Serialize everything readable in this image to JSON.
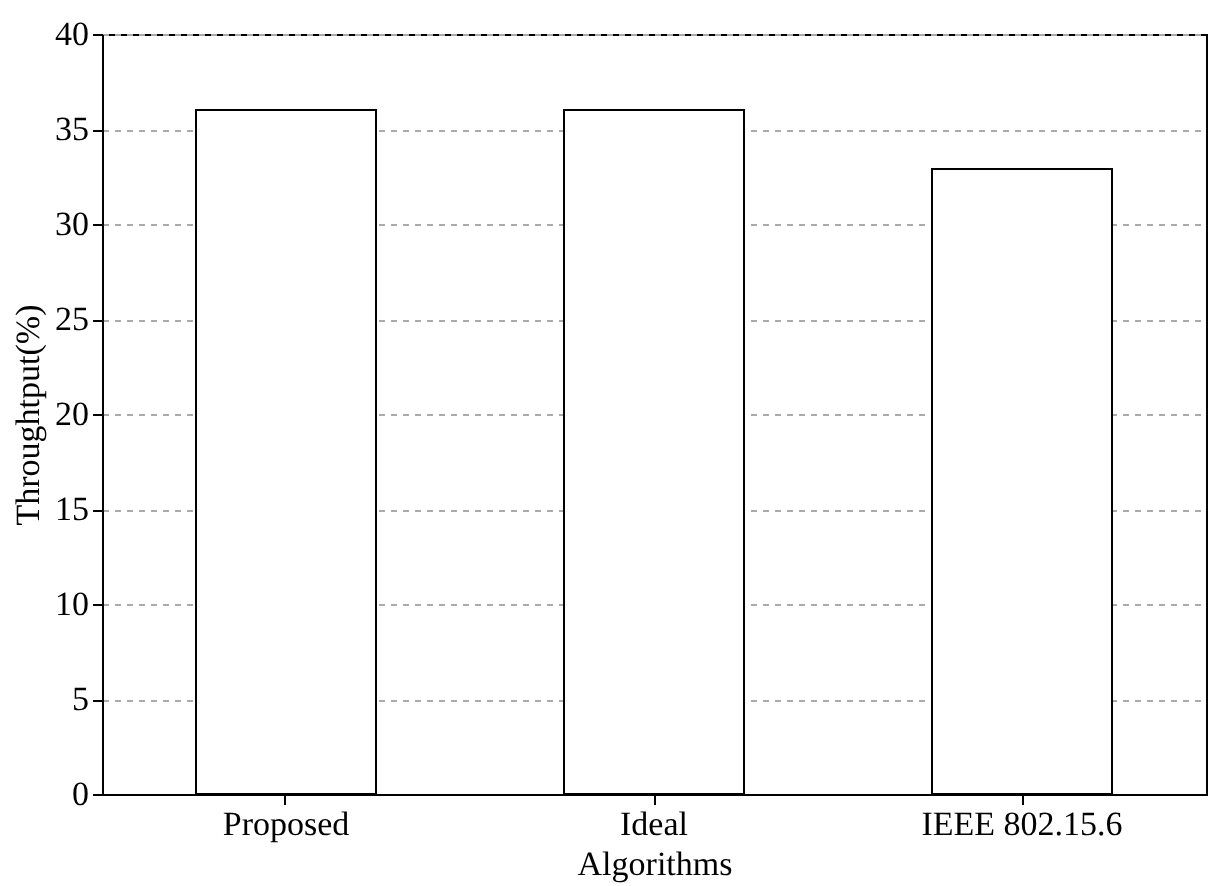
{
  "chart_data": {
    "type": "bar",
    "xlabel": "Algorithms",
    "ylabel": "Throughtput(%)",
    "categories": [
      "Proposed",
      "Ideal",
      "IEEE 802.15.6"
    ],
    "values": [
      36,
      36,
      32.9
    ],
    "colors": [
      "#ffffff",
      "#ffffff",
      "#ffffff"
    ],
    "ylim": [
      0,
      40
    ],
    "yticks": [
      0,
      5,
      10,
      15,
      20,
      25,
      30,
      35,
      40
    ],
    "grid": "y"
  }
}
